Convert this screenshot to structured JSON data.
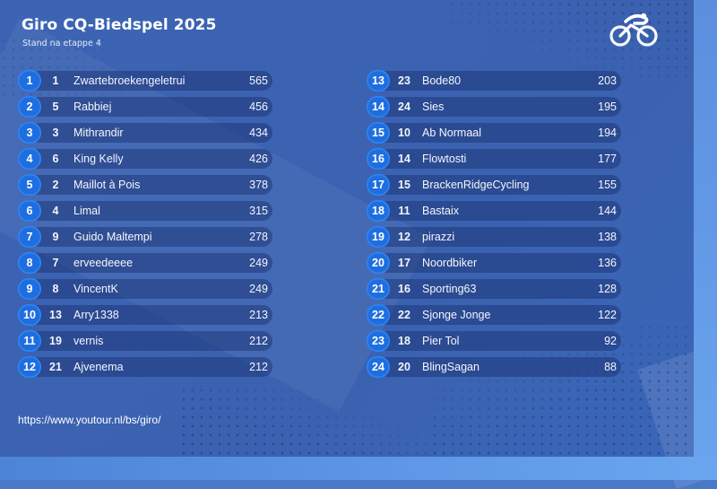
{
  "header": {
    "title": "Giro CQ-Biedspel 2025",
    "subtitle": "Stand na etappe 4"
  },
  "logo": {
    "icon": "cyclist-icon"
  },
  "standings": {
    "left": [
      {
        "rank": "1",
        "prev": "1",
        "name": "Zwartebroekengeletrui",
        "points": "565"
      },
      {
        "rank": "2",
        "prev": "5",
        "name": "Rabbiej",
        "points": "456"
      },
      {
        "rank": "3",
        "prev": "3",
        "name": "Mithrandir",
        "points": "434"
      },
      {
        "rank": "4",
        "prev": "6",
        "name": "King Kelly",
        "points": "426"
      },
      {
        "rank": "5",
        "prev": "2",
        "name": "Maillot à Pois",
        "points": "378"
      },
      {
        "rank": "6",
        "prev": "4",
        "name": "Limal",
        "points": "315"
      },
      {
        "rank": "7",
        "prev": "9",
        "name": "Guido Maltempi",
        "points": "278"
      },
      {
        "rank": "8",
        "prev": "7",
        "name": "erveedeeee",
        "points": "249"
      },
      {
        "rank": "9",
        "prev": "8",
        "name": "VincentK",
        "points": "249"
      },
      {
        "rank": "10",
        "prev": "13",
        "name": "Arry1338",
        "points": "213"
      },
      {
        "rank": "11",
        "prev": "19",
        "name": "vernis",
        "points": "212"
      },
      {
        "rank": "12",
        "prev": "21",
        "name": "Ajvenema",
        "points": "212"
      }
    ],
    "right": [
      {
        "rank": "13",
        "prev": "23",
        "name": "Bode80",
        "points": "203"
      },
      {
        "rank": "14",
        "prev": "24",
        "name": "Sies",
        "points": "195"
      },
      {
        "rank": "15",
        "prev": "10",
        "name": "Ab Normaal",
        "points": "194"
      },
      {
        "rank": "16",
        "prev": "14",
        "name": "Flowtosti",
        "points": "177"
      },
      {
        "rank": "17",
        "prev": "15",
        "name": "BrackenRidgeCycling",
        "points": "155"
      },
      {
        "rank": "18",
        "prev": "11",
        "name": "Bastaix",
        "points": "144"
      },
      {
        "rank": "19",
        "prev": "12",
        "name": "pirazzi",
        "points": "138"
      },
      {
        "rank": "20",
        "prev": "17",
        "name": "Noordbiker",
        "points": "136"
      },
      {
        "rank": "21",
        "prev": "16",
        "name": "Sporting63",
        "points": "128"
      },
      {
        "rank": "22",
        "prev": "22",
        "name": "Sjonge Jonge",
        "points": "122"
      },
      {
        "rank": "23",
        "prev": "18",
        "name": "Pier Tol",
        "points": "92"
      },
      {
        "rank": "24",
        "prev": "20",
        "name": "BlingSagan",
        "points": "88"
      }
    ]
  },
  "footer": {
    "url": "https://www.youtour.nl/bs/giro/"
  },
  "colors": {
    "background": "#3d64b4",
    "rank_badge": "#1f6ee0",
    "row_bar": "#2a4a94",
    "text": "#ffffff"
  }
}
